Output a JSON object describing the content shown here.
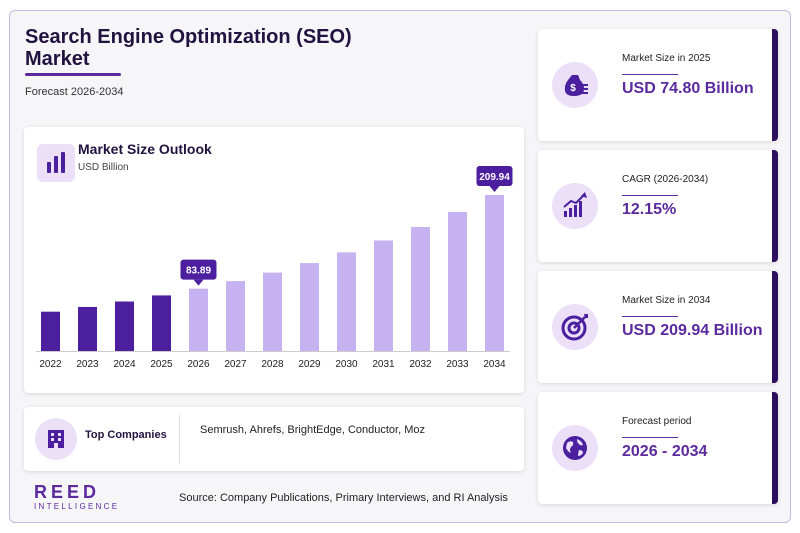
{
  "header": {
    "title": "Search Engine Optimization (SEO) Market",
    "subtitle": "Forecast 2026-2034"
  },
  "chart_card": {
    "title": "Market Size Outlook",
    "unit": "USD Billion",
    "icon": "bar-chart-icon"
  },
  "chart_data": {
    "type": "bar",
    "title": "Market Size Outlook",
    "ylabel": "USD Billion",
    "categories": [
      "2022",
      "2023",
      "2024",
      "2025",
      "2026",
      "2027",
      "2028",
      "2029",
      "2030",
      "2031",
      "2032",
      "2033",
      "2034"
    ],
    "values": [
      52.9,
      59.3,
      66.6,
      74.8,
      83.89,
      94.1,
      105.5,
      118.3,
      132.7,
      148.8,
      166.9,
      187.2,
      209.94
    ],
    "historical_count": 4,
    "colors": {
      "historical": "#4b1f9e",
      "forecast": "#c6b2f0"
    },
    "data_labels": [
      {
        "category": "2026",
        "text": "83.89"
      },
      {
        "category": "2034",
        "text": "209.94"
      }
    ],
    "ylim": [
      0,
      209.94
    ],
    "grid": false,
    "legend": "none"
  },
  "companies": {
    "label": "Top Companies",
    "list": "Semrush, Ahrefs, BrightEdge, Conductor, Moz",
    "icon": "building-icon"
  },
  "logo": {
    "top": "REED",
    "bottom": "INTELLIGENCE"
  },
  "source": "Source: Company Publications, Primary Interviews, and RI Analysis",
  "stats": [
    {
      "label": "Market Size in 2025",
      "value": "USD 74.80 Billion",
      "icon": "money-bag-icon"
    },
    {
      "label": "CAGR (2026-2034)",
      "value": "12.15%",
      "icon": "growth-chart-icon"
    },
    {
      "label": "Market Size in 2034",
      "value": "USD 209.94 Billion",
      "icon": "target-icon"
    },
    {
      "label": "Forecast period",
      "value": "2026 - 2034",
      "icon": "globe-icon"
    }
  ],
  "accent_color": "#5b2a9e"
}
